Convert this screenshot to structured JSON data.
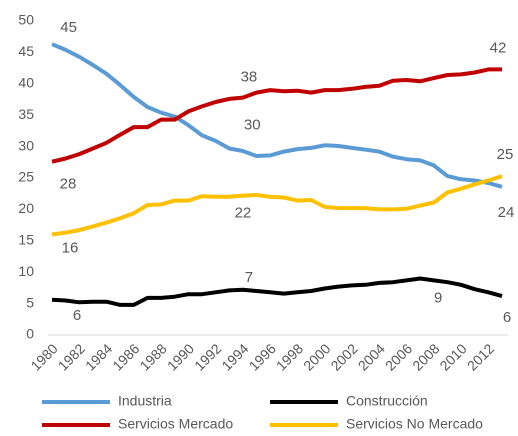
{
  "chart_data": {
    "type": "line",
    "x": [
      1980,
      1981,
      1982,
      1983,
      1984,
      1985,
      1986,
      1987,
      1988,
      1989,
      1990,
      1991,
      1992,
      1993,
      1994,
      1995,
      1996,
      1997,
      1998,
      1999,
      2000,
      2001,
      2002,
      2003,
      2004,
      2005,
      2006,
      2007,
      2008,
      2009,
      2010,
      2011,
      2012,
      2013
    ],
    "xlim": [
      1980,
      2013
    ],
    "xticks": [
      1980,
      1982,
      1984,
      1986,
      1988,
      1990,
      1992,
      1994,
      1996,
      1998,
      2000,
      2002,
      2004,
      2006,
      2008,
      2010,
      2012
    ],
    "ylim": [
      0,
      50
    ],
    "yticks": [
      0,
      5,
      10,
      15,
      20,
      25,
      30,
      35,
      40,
      45,
      50
    ],
    "grid": false,
    "legend": "bottom",
    "series": [
      {
        "name": "Industria",
        "color": "#5b9bd5",
        "values": [
          46.3,
          45.4,
          44.3,
          43.0,
          41.6,
          39.8,
          37.9,
          36.3,
          35.4,
          34.8,
          33.4,
          31.8,
          30.9,
          29.7,
          29.3,
          28.5,
          28.6,
          29.2,
          29.6,
          29.8,
          30.2,
          30.1,
          29.8,
          29.5,
          29.2,
          28.4,
          28.0,
          27.8,
          27.0,
          25.3,
          24.8,
          24.6,
          24.2,
          23.6
        ],
        "value_labels": [
          null,
          "45",
          null,
          null,
          null,
          null,
          null,
          null,
          null,
          null,
          null,
          null,
          null,
          "30",
          null,
          null,
          null,
          null,
          null,
          null,
          null,
          null,
          null,
          null,
          null,
          null,
          null,
          null,
          null,
          null,
          null,
          null,
          null,
          "24"
        ]
      },
      {
        "name": "Construcción",
        "color": "#000000",
        "values": [
          5.6,
          5.5,
          5.2,
          5.3,
          5.3,
          4.8,
          4.8,
          5.9,
          5.9,
          6.1,
          6.5,
          6.5,
          6.8,
          7.1,
          7.2,
          7.0,
          6.8,
          6.6,
          6.8,
          7.0,
          7.4,
          7.7,
          7.9,
          8.0,
          8.3,
          8.4,
          8.7,
          9.0,
          8.7,
          8.4,
          8.0,
          7.3,
          6.8,
          6.2
        ],
        "value_labels": [
          "6",
          null,
          null,
          null,
          null,
          null,
          null,
          null,
          null,
          null,
          null,
          null,
          null,
          null,
          "7",
          null,
          null,
          null,
          null,
          null,
          null,
          null,
          null,
          null,
          null,
          null,
          null,
          "9",
          null,
          null,
          null,
          null,
          null,
          "6"
        ]
      },
      {
        "name": "Servicios Mercado",
        "color": "#c00000",
        "values": [
          27.6,
          28.1,
          28.8,
          29.7,
          30.6,
          31.9,
          33.1,
          33.1,
          34.3,
          34.3,
          35.6,
          36.4,
          37.1,
          37.6,
          37.8,
          38.6,
          39.0,
          38.8,
          38.9,
          38.6,
          39.0,
          39.0,
          39.2,
          39.5,
          39.7,
          40.5,
          40.6,
          40.4,
          40.9,
          41.4,
          41.5,
          41.8,
          42.3,
          42.3
        ],
        "value_labels": [
          "28",
          null,
          null,
          null,
          null,
          null,
          null,
          null,
          null,
          null,
          null,
          null,
          null,
          null,
          "38",
          null,
          null,
          null,
          null,
          null,
          null,
          null,
          null,
          null,
          null,
          null,
          null,
          null,
          null,
          null,
          null,
          null,
          null,
          "42"
        ]
      },
      {
        "name": "Servicios No Mercado",
        "color": "#ffc000",
        "values": [
          16.0,
          16.3,
          16.7,
          17.3,
          17.9,
          18.6,
          19.4,
          20.7,
          20.8,
          21.4,
          21.4,
          22.1,
          22.0,
          22.0,
          22.2,
          22.3,
          22.0,
          21.9,
          21.4,
          21.5,
          20.4,
          20.2,
          20.2,
          20.2,
          20.0,
          20.0,
          20.1,
          20.6,
          21.1,
          22.7,
          23.3,
          24.0,
          24.6,
          25.3
        ],
        "value_labels": [
          "16",
          null,
          null,
          null,
          null,
          null,
          null,
          null,
          null,
          null,
          null,
          null,
          null,
          null,
          "22",
          null,
          null,
          null,
          null,
          null,
          null,
          null,
          null,
          null,
          null,
          null,
          null,
          null,
          null,
          null,
          null,
          null,
          null,
          "25"
        ]
      }
    ]
  }
}
